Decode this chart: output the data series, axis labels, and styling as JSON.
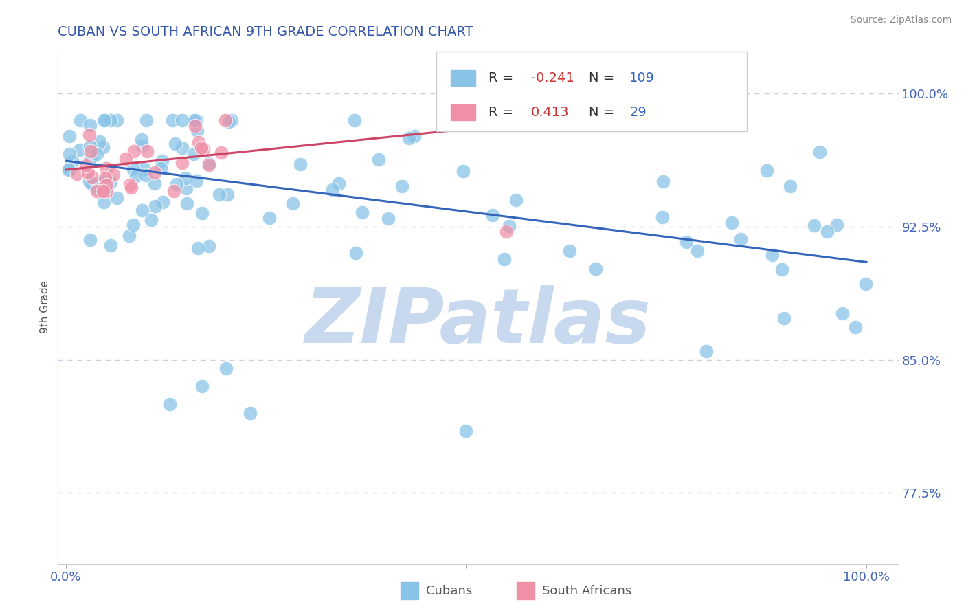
{
  "title": "CUBAN VS SOUTH AFRICAN 9TH GRADE CORRELATION CHART",
  "source_text": "Source: ZipAtlas.com",
  "ylabel": "9th Grade",
  "ytick_vals": [
    0.775,
    0.85,
    0.925,
    1.0
  ],
  "ytick_labels": [
    "77.5%",
    "85.0%",
    "92.5%",
    "100.0%"
  ],
  "xlim": [
    -0.01,
    1.04
  ],
  "ylim": [
    0.735,
    1.025
  ],
  "blue_color": "#89C4E8",
  "pink_color": "#F090A8",
  "blue_line_color": "#3366BB",
  "pink_line_color": "#CC4466",
  "legend_R_blue": "-0.241",
  "legend_N_blue": "109",
  "legend_R_pink": "0.413",
  "legend_N_pink": "29",
  "legend_label_blue": "Cubans",
  "legend_label_pink": "South Africans",
  "R_blue": -0.241,
  "N_blue": 109,
  "R_pink": 0.413,
  "N_pink": 29,
  "blue_line_x0": 0.0,
  "blue_line_x1": 1.0,
  "blue_line_y0": 0.962,
  "blue_line_y1": 0.905,
  "pink_line_x0": 0.0,
  "pink_line_x1": 0.72,
  "pink_line_y0": 0.957,
  "pink_line_y1": 0.99,
  "watermark_text": "ZIPatlas",
  "watermark_color": "#C8D8EE",
  "title_color": "#3355AA",
  "tick_color": "#4466BB",
  "grid_color": "#CCCCDD",
  "background_color": "#FFFFFF",
  "source_color": "#888888"
}
